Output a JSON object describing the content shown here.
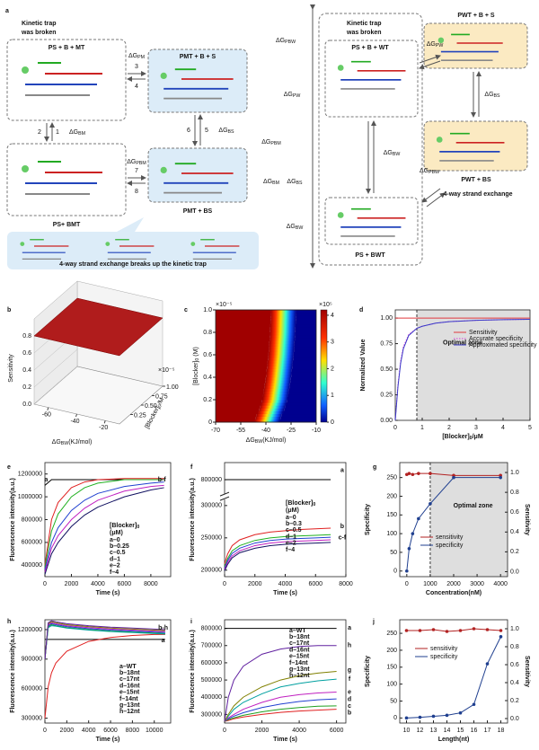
{
  "diagram": {
    "label": "a",
    "left": {
      "note": [
        "Kinetic trap",
        "was broken"
      ],
      "states": [
        "PS + B + MT",
        "PMT + B + S",
        "PS+ BMT",
        "PMT + BS"
      ],
      "steps": [
        "3",
        "4",
        "2",
        "1",
        "6",
        "5",
        "7",
        "8"
      ],
      "energies": [
        [
          "ΔG",
          "PM"
        ],
        [
          "ΔG",
          "BM"
        ],
        [
          "ΔG",
          "BS"
        ],
        [
          "ΔG",
          "PBM"
        ]
      ],
      "caption": "4-way strand exchange breaks up the kinetic trap"
    },
    "axis_labels": [
      [
        "ΔG",
        "PBW"
      ],
      [
        "ΔG",
        "PW"
      ],
      [
        "ΔG",
        "PBM"
      ],
      [
        "ΔG",
        "BM"
      ],
      [
        "ΔG",
        "BS"
      ],
      [
        "ΔG",
        "BW"
      ]
    ],
    "right": {
      "note": [
        "Kinetic trap",
        "was broken"
      ],
      "states": [
        "PS + B + WT",
        "PWT + B + S",
        "PWT + BS",
        "PS + BWT"
      ],
      "energies": [
        [
          "ΔG",
          "PW"
        ],
        [
          "ΔG",
          "BS"
        ],
        [
          "ΔG",
          "BW"
        ],
        [
          "ΔG",
          "PBW"
        ]
      ],
      "caption": "4-way strand exchange"
    }
  },
  "chart_data": [
    {
      "label": "b",
      "type": "surface",
      "zlabel": "Sensitivity",
      "zlim": [
        0,
        1
      ],
      "zticks": [
        {
          "value": 0,
          "label": "0.0"
        },
        0.2,
        0.4,
        0.6,
        0.8
      ],
      "xlabel": [
        "ΔG",
        "BW",
        "(KJ/mol)"
      ],
      "xlim": [
        -70,
        -10
      ],
      "xticks": [
        -60,
        -40,
        -20
      ],
      "ylabel": [
        "[Blocker]",
        "0",
        "/M"
      ],
      "ylim": [
        0,
        1
      ],
      "yticks": [
        0.25,
        {
          "value": 0.5,
          "label": "0.50"
        },
        0.75,
        {
          "value": 1,
          "label": "1.00"
        }
      ],
      "multiplier": "×10⁻⁵",
      "value": 0.8,
      "color": "#b01c1c"
    },
    {
      "label": "c",
      "type": "heatmap",
      "xlabel": [
        "ΔG",
        "BW",
        "(KJ/mol)"
      ],
      "ylabel": [
        "[Blocker]",
        "0",
        " (M)"
      ],
      "xlim": [
        -70,
        -10
      ],
      "xticks": [
        -70,
        -55,
        -40,
        -25,
        -10
      ],
      "ylim": [
        0,
        1
      ],
      "yticks": [
        0,
        0.2,
        0.4,
        0.6,
        0.8,
        {
          "value": 1,
          "label": "1.0"
        }
      ],
      "multiplier": "×10⁻⁵",
      "contour_y": [
        0,
        0.2,
        0.4,
        0.6,
        0.8,
        1
      ],
      "contour_x": [
        -44,
        -39,
        -37,
        -35.5,
        -34.5,
        -34
      ],
      "cbar_lim": [
        0,
        4.2
      ],
      "cbar_ticks": [
        0,
        1,
        2,
        3,
        4
      ],
      "cbar_multiplier": "×10⁵"
    },
    {
      "label": "d",
      "type": "line",
      "xlabel": [
        "[Blocker]",
        "0",
        "/μM"
      ],
      "ylabel": "Normalized Value",
      "xlim": [
        0,
        5
      ],
      "xticks": [
        0,
        1,
        2,
        3,
        4,
        5
      ],
      "ylim": [
        0,
        1.08
      ],
      "yticks": [
        {
          "value": 0,
          "label": "0.00"
        },
        0.25,
        {
          "value": 0.5,
          "label": "0.50"
        },
        0.75,
        {
          "value": 1,
          "label": "1.00"
        }
      ],
      "shade_from": 0.8,
      "annotations": [
        "Optimal zone"
      ],
      "legend_style": "lines",
      "x": [
        0,
        0.1,
        0.2,
        0.3,
        0.5,
        0.8,
        1,
        1.5,
        2,
        3,
        4,
        5
      ],
      "series": [
        {
          "name": "Sensitivity",
          "color": "#e0393e",
          "values": [
            1,
            1,
            1,
            1,
            1,
            1,
            1,
            1,
            1,
            1,
            1,
            1
          ]
        },
        {
          "name": "Accurate specificity",
          "color": "#d63fd6",
          "dash": true,
          "values": [
            0,
            0.35,
            0.58,
            0.72,
            0.84,
            0.9,
            0.92,
            0.95,
            0.965,
            0.978,
            0.984,
            0.988
          ]
        },
        {
          "name": "Approximated specificity",
          "color": "#3a3ac8",
          "values": [
            0,
            0.33,
            0.56,
            0.7,
            0.83,
            0.9,
            0.92,
            0.95,
            0.965,
            0.978,
            0.984,
            0.988
          ]
        }
      ]
    },
    {
      "label": "e",
      "type": "line",
      "xlabel": "Time (s)",
      "ylabel": "Fluorescence intensity(a.u.)",
      "xlim": [
        0,
        9500
      ],
      "xticks": [
        0,
        2000,
        4000,
        6000,
        8000
      ],
      "ylim": [
        300000,
        1300000
      ],
      "yticks": [
        400000,
        600000,
        800000,
        1000000,
        1200000
      ],
      "legend_title": [
        "[Blocker]",
        "0"
      ],
      "legend_unit": "(μM)",
      "legend_style": "text",
      "annotations": [
        "a",
        "b-f"
      ],
      "x": [
        0,
        500,
        1000,
        2000,
        3000,
        4000,
        6000,
        8000,
        9000
      ],
      "series": [
        {
          "name": "a–0",
          "color": "#000000",
          "values": [
            1100000,
            1150000,
            1150000,
            1150000,
            1150000,
            1150000,
            1150000,
            1150000,
            1150000
          ]
        },
        {
          "name": "b–0.25",
          "color": "#e02020",
          "values": [
            400000,
            800000,
            950000,
            1080000,
            1130000,
            1150000,
            1160000,
            1160000,
            1160000
          ]
        },
        {
          "name": "c–0.5",
          "color": "#20b020",
          "values": [
            380000,
            700000,
            850000,
            1000000,
            1080000,
            1120000,
            1150000,
            1150000,
            1150000
          ]
        },
        {
          "name": "d–1",
          "color": "#2040d0",
          "values": [
            360000,
            600000,
            730000,
            880000,
            970000,
            1030000,
            1090000,
            1120000,
            1130000
          ]
        },
        {
          "name": "e–2",
          "color": "#c020c0",
          "values": [
            340000,
            550000,
            660000,
            800000,
            900000,
            970000,
            1050000,
            1090000,
            1100000
          ]
        },
        {
          "name": "f–4",
          "color": "#101060",
          "values": [
            320000,
            500000,
            600000,
            740000,
            840000,
            910000,
            1000000,
            1060000,
            1080000
          ]
        }
      ]
    },
    {
      "label": "f",
      "type": "line",
      "xlabel": "Time (s)",
      "ylabel": "Fluorescence intensity(a.u.)",
      "xlim": [
        0,
        8000
      ],
      "xticks": [
        0,
        2000,
        4000,
        6000,
        8000
      ],
      "ylim": [
        190000,
        830000
      ],
      "ybreak": [
        310000,
        780000
      ],
      "yticks": [
        200000,
        250000,
        300000,
        800000
      ],
      "legend_title": [
        "[Blocker]",
        "0"
      ],
      "legend_unit": "(μM)",
      "legend_style": "text",
      "annotations": [
        "a",
        "b",
        "c-f"
      ],
      "x": [
        0,
        200,
        500,
        1000,
        2000,
        3000,
        4000,
        5000,
        6000,
        7000
      ],
      "series": [
        {
          "name": "a–0",
          "color": "#000000",
          "values": [
            800000,
            800000,
            800000,
            800000,
            800000,
            800000,
            800000,
            800000,
            800000,
            800000
          ]
        },
        {
          "name": "b–0.3",
          "color": "#e02020",
          "values": [
            210000,
            225000,
            238000,
            247000,
            255000,
            259000,
            261000,
            263000,
            264000,
            265000
          ]
        },
        {
          "name": "c–0.5",
          "color": "#20b020",
          "values": [
            205000,
            218000,
            230000,
            238000,
            246000,
            250000,
            252000,
            253000,
            254000,
            255000
          ]
        },
        {
          "name": "d–1",
          "color": "#2040d0",
          "values": [
            203000,
            215000,
            226000,
            234000,
            242000,
            246000,
            248000,
            249000,
            250000,
            251000
          ]
        },
        {
          "name": "e–2",
          "color": "#c020c0",
          "values": [
            201000,
            212000,
            222000,
            230000,
            238000,
            242000,
            244000,
            245000,
            246000,
            247000
          ]
        },
        {
          "name": "f–4",
          "color": "#101060",
          "values": [
            199000,
            209000,
            219000,
            227000,
            234000,
            238000,
            240000,
            241000,
            242000,
            243000
          ]
        }
      ]
    },
    {
      "label": "g",
      "type": "line",
      "xlabel": "Concentration(nM)",
      "ylabel": "Specificity",
      "y2label": "Sensitivity",
      "xlim": [
        -300,
        4300
      ],
      "xticks": [
        0,
        1000,
        2000,
        3000,
        4000
      ],
      "ylim": [
        -15,
        290
      ],
      "yticks": [
        0,
        50,
        100,
        150,
        200,
        250
      ],
      "y2lim": [
        -0.05,
        1.1
      ],
      "y2ticks": [
        {
          "value": 0,
          "label": "0.0"
        },
        0.2,
        0.4,
        0.6,
        0.8,
        {
          "value": 1,
          "label": "1.0"
        }
      ],
      "shade_from": 1000,
      "annotations": [
        "Optimal zone"
      ],
      "markers": true,
      "legend_style": "lines",
      "x": [
        0,
        100,
        250,
        500,
        1000,
        2000,
        4000
      ],
      "series": [
        {
          "name": "sensitivity",
          "color": "#b22222",
          "axis": "y2",
          "values": [
            0.98,
            0.99,
            0.98,
            0.99,
            0.99,
            0.97,
            0.97
          ]
        },
        {
          "name": "specificity",
          "color": "#1f3f8f",
          "values": [
            0,
            60,
            100,
            140,
            180,
            250,
            250
          ]
        }
      ]
    },
    {
      "label": "h",
      "type": "line",
      "xlabel": "Time (s)",
      "ylabel": "Fluorescence intensity(a.u.)",
      "xlim": [
        0,
        11500
      ],
      "xticks": [
        0,
        2000,
        4000,
        6000,
        8000,
        10000
      ],
      "ylim": [
        250000,
        1300000
      ],
      "yticks": [
        300000,
        600000,
        900000,
        1200000
      ],
      "legend_style": "text",
      "annotations": [
        "b-h",
        "a"
      ],
      "x": [
        0,
        300,
        600,
        1000,
        2000,
        4000,
        6000,
        8000,
        10000,
        11000
      ],
      "series": [
        {
          "name": "a–WT",
          "color": "#000000",
          "values": [
            1100000,
            1100000,
            1100000,
            1100000,
            1100000,
            1100000,
            1100000,
            1100000,
            1100000,
            1100000
          ]
        },
        {
          "name": "b–18nt",
          "color": "#e02020",
          "values": [
            300000,
            620000,
            760000,
            860000,
            980000,
            1080000,
            1120000,
            1140000,
            1150000,
            1150000
          ]
        },
        {
          "name": "c–17nt",
          "color": "#20a020",
          "values": [
            900000,
            1230000,
            1250000,
            1240000,
            1220000,
            1200000,
            1185000,
            1175000,
            1165000,
            1160000
          ]
        },
        {
          "name": "d–16nt",
          "color": "#2040d0",
          "values": [
            900000,
            1240000,
            1260000,
            1250000,
            1230000,
            1210000,
            1195000,
            1185000,
            1175000,
            1170000
          ]
        },
        {
          "name": "e–15nt",
          "color": "#c020c0",
          "values": [
            900000,
            1250000,
            1270000,
            1260000,
            1240000,
            1220000,
            1205000,
            1195000,
            1185000,
            1180000
          ]
        },
        {
          "name": "f–14nt",
          "color": "#00a0a0",
          "values": [
            900000,
            1220000,
            1240000,
            1235000,
            1215000,
            1195000,
            1180000,
            1170000,
            1160000,
            1155000
          ]
        },
        {
          "name": "g–13nt",
          "color": "#808000",
          "values": [
            900000,
            1260000,
            1280000,
            1270000,
            1250000,
            1230000,
            1215000,
            1205000,
            1195000,
            1190000
          ]
        },
        {
          "name": "h–12nt",
          "color": "#6020a0",
          "values": [
            900000,
            1270000,
            1290000,
            1280000,
            1260000,
            1240000,
            1225000,
            1215000,
            1205000,
            1200000
          ]
        }
      ]
    },
    {
      "label": "i",
      "type": "line",
      "xlabel": "Time (s)",
      "ylabel": "Fluorescence intensity(a.u.)",
      "xlim": [
        0,
        6500
      ],
      "xticks": [
        0,
        2000,
        4000,
        6000
      ],
      "ylim": [
        250000,
        850000
      ],
      "yticks": [
        300000,
        400000,
        500000,
        600000,
        700000,
        800000
      ],
      "legend_style": "text",
      "annotations": [
        "a",
        "h",
        "g",
        "f",
        "e",
        "d",
        "c",
        "b"
      ],
      "x": [
        0,
        200,
        500,
        1000,
        2000,
        3000,
        4000,
        5000,
        6000
      ],
      "series": [
        {
          "name": "a–WT",
          "color": "#000000",
          "values": [
            800000,
            800000,
            800000,
            800000,
            800000,
            800000,
            800000,
            800000,
            800000
          ]
        },
        {
          "name": "b–18nt",
          "color": "#e02020",
          "values": [
            260000,
            265000,
            275000,
            285000,
            300000,
            312000,
            320000,
            325000,
            330000
          ]
        },
        {
          "name": "c–17nt",
          "color": "#20a020",
          "values": [
            260000,
            270000,
            280000,
            295000,
            315000,
            330000,
            340000,
            348000,
            350000
          ]
        },
        {
          "name": "d–16nt",
          "color": "#2040d0",
          "values": [
            260000,
            275000,
            290000,
            310000,
            340000,
            360000,
            375000,
            385000,
            390000
          ]
        },
        {
          "name": "e–15nt",
          "color": "#c020c0",
          "values": [
            260000,
            280000,
            300000,
            330000,
            370000,
            400000,
            415000,
            425000,
            430000
          ]
        },
        {
          "name": "f–14nt",
          "color": "#00a0a0",
          "values": [
            260000,
            290000,
            330000,
            370000,
            420000,
            460000,
            480000,
            495000,
            505000
          ]
        },
        {
          "name": "g–13nt",
          "color": "#808000",
          "values": [
            260000,
            300000,
            350000,
            400000,
            460000,
            500000,
            525000,
            540000,
            550000
          ]
        },
        {
          "name": "h–12nt",
          "color": "#6020a0",
          "values": [
            260000,
            400000,
            500000,
            580000,
            650000,
            680000,
            695000,
            700000,
            700000
          ]
        }
      ]
    },
    {
      "label": "j",
      "type": "line",
      "xlabel": "Length(nt)",
      "ylabel": "Specificity",
      "y2label": "Sensitivity",
      "categories": [
        "10",
        "12",
        "13",
        "14",
        "15",
        "16",
        "17",
        "18"
      ],
      "ylim": [
        -15,
        290
      ],
      "yticks": [
        0,
        50,
        100,
        150,
        200,
        250
      ],
      "y2lim": [
        -0.05,
        1.1
      ],
      "y2ticks": [
        {
          "value": 0,
          "label": "0.0"
        },
        0.2,
        0.4,
        0.6,
        0.8,
        {
          "value": 1,
          "label": "1.0"
        }
      ],
      "markers": true,
      "legend_style": "lines",
      "series": [
        {
          "name": "sensitivity",
          "color": "#b22222",
          "axis": "y2",
          "values": [
            0.98,
            0.98,
            0.99,
            0.97,
            0.98,
            1.0,
            0.99,
            0.98
          ]
        },
        {
          "name": "specificity",
          "color": "#1f3f8f",
          "values": [
            0,
            2,
            5,
            8,
            15,
            40,
            160,
            240
          ]
        }
      ]
    }
  ]
}
